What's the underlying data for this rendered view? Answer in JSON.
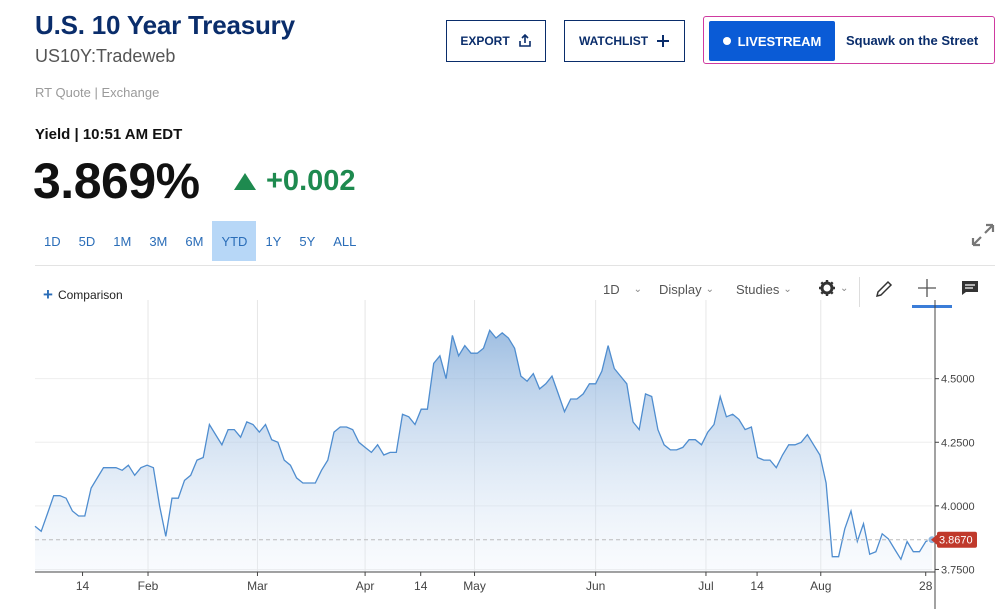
{
  "header": {
    "title": "U.S. 10 Year Treasury",
    "symbol": "US10Y:Tradeweb",
    "quote_meta": "RT Quote | Exchange",
    "export_label": "EXPORT",
    "watchlist_label": "WATCHLIST",
    "livestream_label": "LIVESTREAM",
    "livestream_show": "Squawk on the Street"
  },
  "quote": {
    "label": "Yield | 10:51 AM EDT",
    "price": "3.869%",
    "change": "+0.002",
    "change_color": "#1e8a4f"
  },
  "ranges": [
    "1D",
    "5D",
    "1M",
    "3M",
    "6M",
    "YTD",
    "1Y",
    "5Y",
    "ALL"
  ],
  "active_range": "YTD",
  "toolbar": {
    "comparison": "Comparison",
    "interval": "1D",
    "display": "Display",
    "studies": "Studies"
  },
  "icons": [
    "share-icon",
    "plus-icon",
    "expand-icon",
    "gear-icon",
    "pencil-icon",
    "crosshair-icon",
    "comment-icon"
  ],
  "chart_data": {
    "type": "area",
    "x_ticks": [
      "14",
      "Feb",
      "Mar",
      "Apr",
      "14",
      "May",
      "Jun",
      "Jul",
      "14",
      "Aug",
      "28"
    ],
    "y_ticks": [
      "4.5000",
      "4.2500",
      "4.0000",
      "3.7500"
    ],
    "ylim": [
      3.74,
      4.77
    ],
    "last_value_label": "3.8670",
    "last_value": 3.867,
    "line_color": "#4f8dcf",
    "marker_color": "#c0392b",
    "series": [
      {
        "values": [
          3.92,
          3.9,
          3.97,
          4.04,
          4.04,
          4.03,
          3.98,
          3.96,
          3.96,
          4.07,
          4.11,
          4.15,
          4.15,
          4.15,
          4.14,
          4.16,
          4.12,
          4.15,
          4.16,
          4.15,
          4.0,
          3.88,
          4.03,
          4.03,
          4.1,
          4.12,
          4.18,
          4.19,
          4.32,
          4.28,
          4.24,
          4.3,
          4.3,
          4.27,
          4.33,
          4.32,
          4.29,
          4.32,
          4.26,
          4.25,
          4.18,
          4.16,
          4.11,
          4.09,
          4.09,
          4.09,
          4.14,
          4.18,
          4.29,
          4.31,
          4.31,
          4.3,
          4.25,
          4.23,
          4.21,
          4.24,
          4.2,
          4.21,
          4.21,
          4.36,
          4.35,
          4.32,
          4.38,
          4.38,
          4.56,
          4.59,
          4.5,
          4.67,
          4.59,
          4.63,
          4.6,
          4.6,
          4.62,
          4.69,
          4.66,
          4.68,
          4.66,
          4.62,
          4.51,
          4.49,
          4.52,
          4.46,
          4.48,
          4.51,
          4.44,
          4.37,
          4.42,
          4.42,
          4.44,
          4.48,
          4.48,
          4.53,
          4.63,
          4.54,
          4.51,
          4.48,
          4.33,
          4.3,
          4.44,
          4.43,
          4.3,
          4.24,
          4.22,
          4.22,
          4.23,
          4.26,
          4.26,
          4.24,
          4.29,
          4.32,
          4.43,
          4.35,
          4.36,
          4.34,
          4.3,
          4.31,
          4.19,
          4.18,
          4.18,
          4.15,
          4.2,
          4.24,
          4.24,
          4.25,
          4.28,
          4.24,
          4.2,
          4.09,
          3.8,
          3.8,
          3.91,
          3.98,
          3.86,
          3.93,
          3.81,
          3.82,
          3.89,
          3.87,
          3.83,
          3.79,
          3.86,
          3.82,
          3.82,
          3.86,
          3.87
        ]
      }
    ]
  }
}
